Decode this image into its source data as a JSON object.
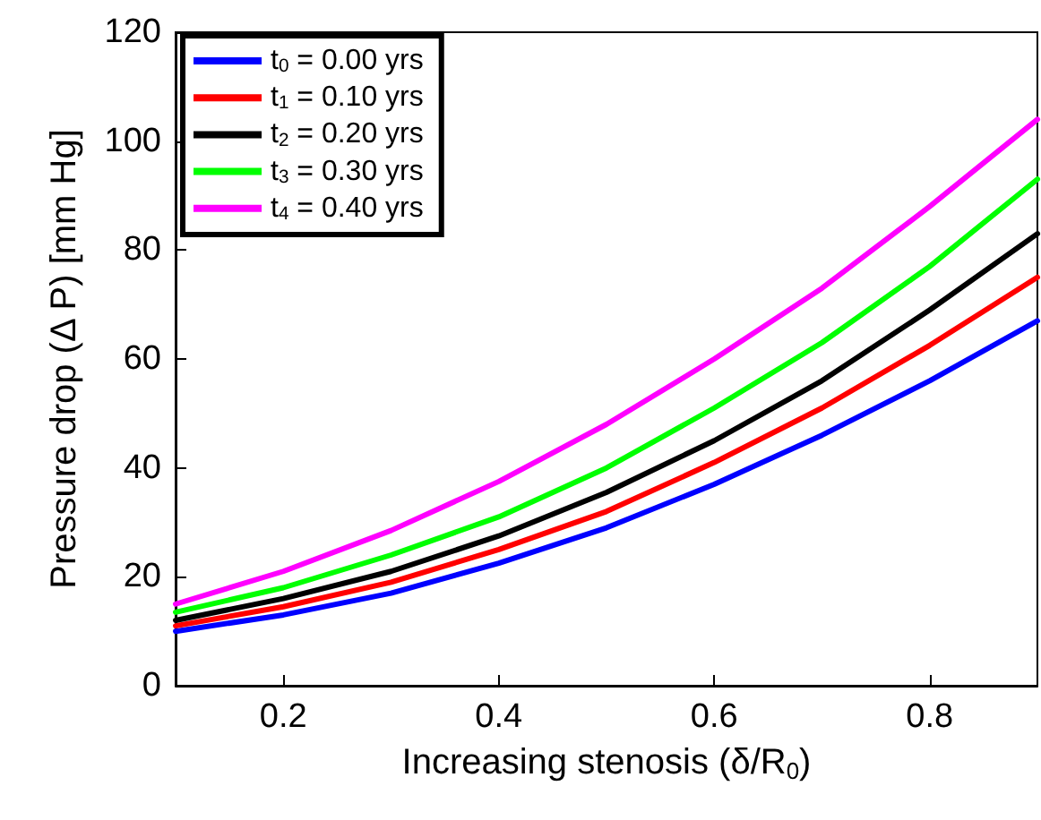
{
  "chart_data": {
    "type": "line",
    "xlabel": "Increasing stenosis (δ/R$_{0}$)",
    "ylabel": "Pressure drop (Δ P) [mm Hg]",
    "x": [
      0.1,
      0.2,
      0.3,
      0.4,
      0.5,
      0.6,
      0.7,
      0.8,
      0.9
    ],
    "series": [
      {
        "name": "t$_{0}$ = 0.00 yrs",
        "color": "#0000ff",
        "values": [
          10,
          13,
          17,
          22.5,
          29,
          37,
          46,
          56,
          67
        ]
      },
      {
        "name": "t$_{1}$ = 0.10 yrs",
        "color": "#ff0000",
        "values": [
          11,
          14.5,
          19,
          25,
          32,
          41,
          51,
          62.5,
          75
        ]
      },
      {
        "name": "t$_{2}$ = 0.20 yrs",
        "color": "#000000",
        "values": [
          12,
          16,
          21,
          27.5,
          35.5,
          45,
          56,
          69,
          83
        ]
      },
      {
        "name": "t$_{3}$ = 0.30 yrs",
        "color": "#00ff00",
        "values": [
          13.5,
          18,
          24,
          31,
          40,
          51,
          63,
          77,
          93
        ]
      },
      {
        "name": "t$_{4}$ = 0.40 yrs",
        "color": "#ff00ff",
        "values": [
          15,
          21,
          28.5,
          37.5,
          48,
          60,
          73,
          88,
          104
        ]
      }
    ],
    "xlim": [
      0.1,
      0.9
    ],
    "xticks": [
      0.2,
      0.4,
      0.6,
      0.8
    ],
    "ylim": [
      0,
      120
    ],
    "yticks": [
      0,
      20,
      40,
      60,
      80,
      100,
      120
    ],
    "legend": "top left",
    "grid": false,
    "marker": "none",
    "line_style": "solid"
  }
}
